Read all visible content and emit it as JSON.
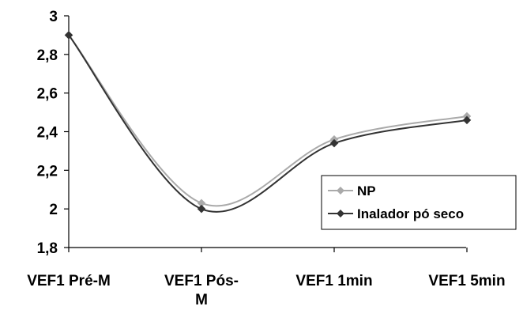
{
  "chart_data": {
    "type": "line",
    "title": "",
    "xlabel": "",
    "ylabel": "",
    "categories": [
      "VEF1 Pré-M",
      "VEF1 Pós-M",
      "VEF1 1min",
      "VEF1 5min"
    ],
    "category_lines": [
      [
        "VEF1 Pré-M"
      ],
      [
        "VEF1 Pós-",
        "M"
      ],
      [
        "VEF1 1min"
      ],
      [
        "VEF1 5min"
      ]
    ],
    "ylim": [
      1.8,
      3
    ],
    "yticks": [
      "1,8",
      "2",
      "2,2",
      "2,4",
      "2,6",
      "2,8",
      "3"
    ],
    "grid": false,
    "legend_position": "bottom-right",
    "smooth": true,
    "series": [
      {
        "name": "NP",
        "values": [
          2.9,
          2.03,
          2.36,
          2.48
        ],
        "color": "#aaaaaa",
        "marker": "diamond"
      },
      {
        "name": "Inalador pó seco",
        "values": [
          2.9,
          2.0,
          2.34,
          2.46
        ],
        "color": "#333333",
        "marker": "diamond"
      }
    ]
  }
}
